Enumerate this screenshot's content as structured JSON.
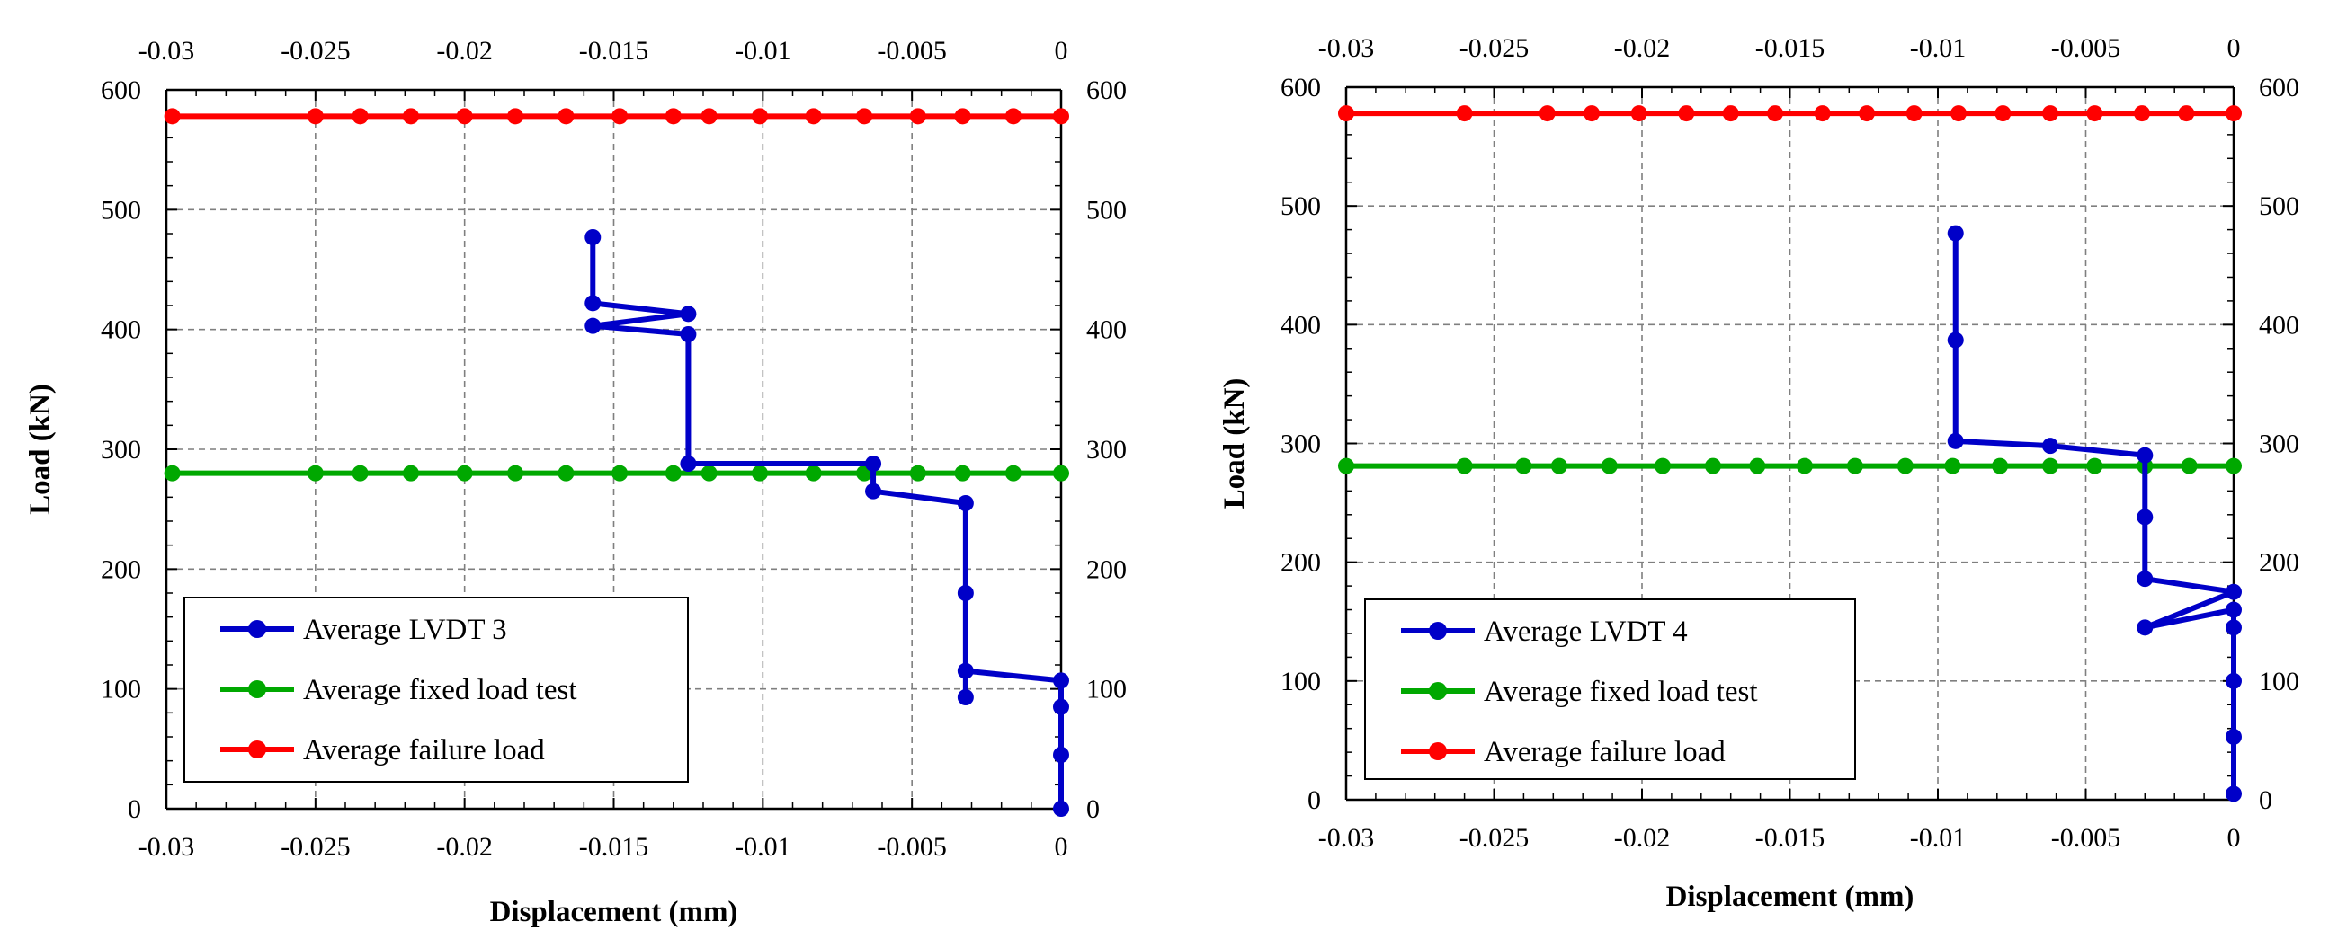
{
  "chart_data": [
    {
      "type": "line",
      "name": "left-panel",
      "xlabel": "Displacement (mm)",
      "ylabel": "Load (kN)",
      "xlim": [
        -0.03,
        0
      ],
      "ylim": [
        0,
        600
      ],
      "x_ticks": [
        -0.03,
        -0.025,
        -0.02,
        -0.015,
        -0.01,
        -0.005,
        0
      ],
      "x_tick_labels": [
        "-0.03",
        "-0.025",
        "-0.02",
        "-0.015",
        "-0.01",
        "-0.005",
        "0"
      ],
      "y_ticks": [
        0,
        100,
        200,
        300,
        400,
        500,
        600
      ],
      "y_tick_labels": [
        "0",
        "100",
        "200",
        "300",
        "400",
        "500",
        "600"
      ],
      "grid": true,
      "legend_position": "bottom-left",
      "series": [
        {
          "name": "Average LVDT 3",
          "color": "#0000c8",
          "x": [
            0,
            0,
            0,
            0,
            -0.0032,
            -0.0032,
            -0.0032,
            -0.0032,
            -0.0063,
            -0.0063,
            -0.0125,
            -0.0125,
            -0.0157,
            -0.0125,
            -0.0157,
            -0.0157
          ],
          "y": [
            0,
            45,
            85,
            107,
            115,
            93,
            180,
            255,
            265,
            288,
            288,
            396,
            403,
            413,
            422,
            477
          ]
        },
        {
          "name": "Average fixed load test",
          "color": "#00a800",
          "x": [
            -0.0298,
            -0.025,
            -0.0235,
            -0.0218,
            -0.02,
            -0.0183,
            -0.0166,
            -0.0148,
            -0.013,
            -0.0118,
            -0.0101,
            -0.0083,
            -0.0066,
            -0.0048,
            -0.0033,
            -0.0016,
            0
          ],
          "y": [
            280,
            280,
            280,
            280,
            280,
            280,
            280,
            280,
            280,
            280,
            280,
            280,
            280,
            280,
            280,
            280,
            280
          ]
        },
        {
          "name": "Average failure load",
          "color": "#ff0000",
          "x": [
            -0.0298,
            -0.025,
            -0.0235,
            -0.0218,
            -0.02,
            -0.0183,
            -0.0166,
            -0.0148,
            -0.013,
            -0.0118,
            -0.0101,
            -0.0083,
            -0.0066,
            -0.0048,
            -0.0033,
            -0.0016,
            0
          ],
          "y": [
            578,
            578,
            578,
            578,
            578,
            578,
            578,
            578,
            578,
            578,
            578,
            578,
            578,
            578,
            578,
            578,
            578
          ]
        }
      ]
    },
    {
      "type": "line",
      "name": "right-panel",
      "xlabel": "Displacement (mm)",
      "ylabel": "Load (kN)",
      "xlim": [
        -0.03,
        0
      ],
      "ylim": [
        0,
        600
      ],
      "x_ticks": [
        -0.03,
        -0.025,
        -0.02,
        -0.015,
        -0.01,
        -0.005,
        0
      ],
      "x_tick_labels": [
        "-0.03",
        "-0.025",
        "-0.02",
        "-0.015",
        "-0.01",
        "-0.005",
        "0"
      ],
      "y_ticks": [
        0,
        100,
        200,
        300,
        400,
        500,
        600
      ],
      "y_tick_labels": [
        "0",
        "100",
        "200",
        "300",
        "400",
        "500",
        "600"
      ],
      "grid": true,
      "legend_position": "bottom-left",
      "series": [
        {
          "name": "Average LVDT 4",
          "color": "#0000c8",
          "x": [
            0,
            0,
            0,
            0,
            0,
            -0.003,
            0,
            -0.003,
            -0.003,
            -0.003,
            -0.0062,
            -0.0094,
            -0.0094,
            -0.0094
          ],
          "y": [
            5,
            53,
            100,
            145,
            160,
            145,
            175,
            186,
            238,
            290,
            298,
            302,
            387,
            477
          ]
        },
        {
          "name": "Average fixed load test",
          "color": "#00a800",
          "x": [
            -0.03,
            -0.026,
            -0.024,
            -0.0228,
            -0.0211,
            -0.0193,
            -0.0176,
            -0.0161,
            -0.0145,
            -0.0128,
            -0.0111,
            -0.0095,
            -0.0079,
            -0.0062,
            -0.0047,
            -0.003,
            -0.0015,
            0
          ],
          "y": [
            281,
            281,
            281,
            281,
            281,
            281,
            281,
            281,
            281,
            281,
            281,
            281,
            281,
            281,
            281,
            281,
            281,
            281
          ]
        },
        {
          "name": "Average failure load",
          "color": "#ff0000",
          "x": [
            -0.03,
            -0.026,
            -0.0232,
            -0.0217,
            -0.0201,
            -0.0185,
            -0.017,
            -0.0155,
            -0.0139,
            -0.0124,
            -0.0108,
            -0.0093,
            -0.0078,
            -0.0062,
            -0.0047,
            -0.0031,
            -0.0016,
            0
          ],
          "y": [
            578,
            578,
            578,
            578,
            578,
            578,
            578,
            578,
            578,
            578,
            578,
            578,
            578,
            578,
            578,
            578,
            578,
            578
          ]
        }
      ]
    }
  ]
}
